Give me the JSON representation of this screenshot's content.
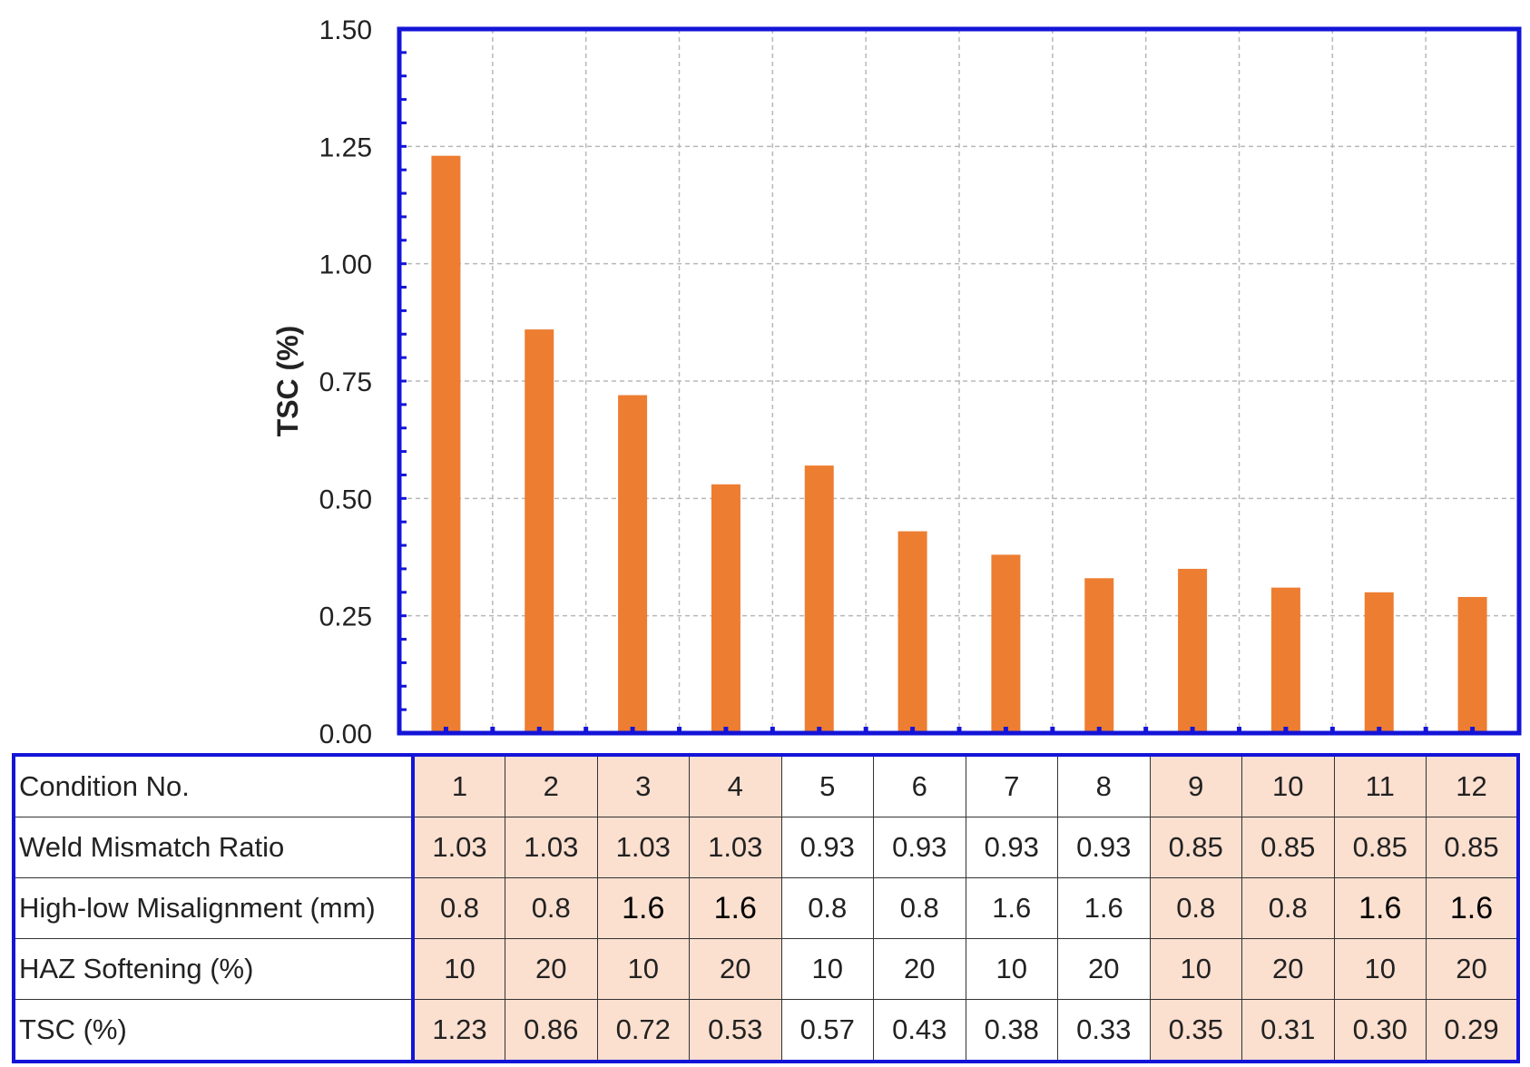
{
  "chart_data": {
    "type": "bar",
    "ylabel": "TSC (%)",
    "xlabel": "",
    "ylim": [
      0,
      1.5
    ],
    "yticks": [
      "0.00",
      "0.25",
      "0.50",
      "0.75",
      "1.00",
      "1.25",
      "1.50"
    ],
    "grid": true,
    "categories": [
      "1",
      "2",
      "3",
      "4",
      "5",
      "6",
      "7",
      "8",
      "9",
      "10",
      "11",
      "12"
    ],
    "values": [
      1.23,
      0.86,
      0.72,
      0.53,
      0.57,
      0.43,
      0.38,
      0.33,
      0.35,
      0.31,
      0.3,
      0.29
    ],
    "bar_color": "#ed7d31",
    "frame_color": "#1414d8"
  },
  "table": {
    "rows": [
      {
        "label": "Condition No.",
        "cells": [
          "1",
          "2",
          "3",
          "4",
          "5",
          "6",
          "7",
          "8",
          "9",
          "10",
          "11",
          "12"
        ]
      },
      {
        "label": "Weld Mismatch Ratio",
        "cells": [
          "1.03",
          "1.03",
          "1.03",
          "1.03",
          "0.93",
          "0.93",
          "0.93",
          "0.93",
          "0.85",
          "0.85",
          "0.85",
          "0.85"
        ]
      },
      {
        "label": "High-low Misalignment (mm)",
        "cells": [
          "0.8",
          "0.8",
          "1.6",
          "1.6",
          "0.8",
          "0.8",
          "1.6",
          "1.6",
          "0.8",
          "0.8",
          "1.6",
          "1.6"
        ]
      },
      {
        "label": "HAZ Softening (%)",
        "cells": [
          "10",
          "20",
          "10",
          "20",
          "10",
          "20",
          "10",
          "20",
          "10",
          "20",
          "10",
          "20"
        ]
      },
      {
        "label": "TSC (%)",
        "cells": [
          "1.23",
          "0.86",
          "0.72",
          "0.53",
          "0.57",
          "0.43",
          "0.38",
          "0.33",
          "0.35",
          "0.31",
          "0.30",
          "0.29"
        ]
      }
    ],
    "shade_color": "#fbdfcf"
  }
}
